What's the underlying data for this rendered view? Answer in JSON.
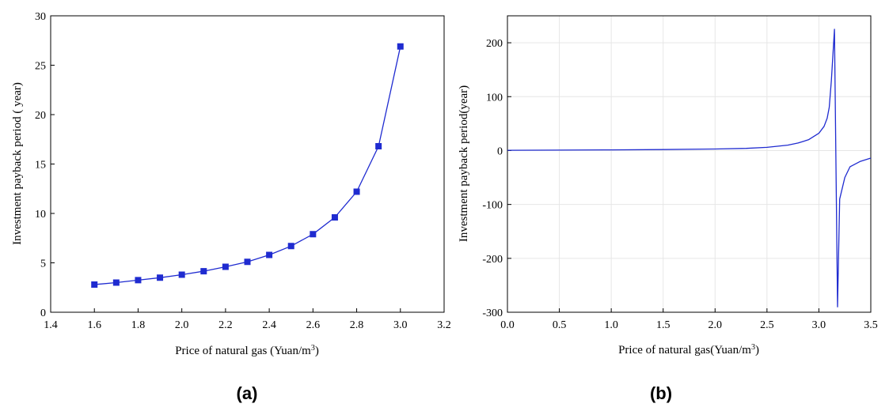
{
  "colors": {
    "series": "#1f2bd0",
    "axis": "#000000",
    "grid": "#e6e6e6"
  },
  "chart_data": [
    {
      "type": "line",
      "panel_label": "(a)",
      "xlabel": "Price of natural gas (Yuan/m",
      "xlabel_sup": "3",
      "xlabel_end": ")",
      "ylabel": "Investment payback period ( year)",
      "xlim": [
        1.4,
        3.2
      ],
      "ylim": [
        0,
        30
      ],
      "xticks": [
        "1.4",
        "1.6",
        "1.8",
        "2.0",
        "2.2",
        "2.4",
        "2.6",
        "2.8",
        "3.0",
        "3.2"
      ],
      "yticks": [
        "0",
        "5",
        "10",
        "15",
        "20",
        "25",
        "30"
      ],
      "grid": false,
      "markers": "square",
      "x": [
        1.6,
        1.7,
        1.8,
        1.9,
        2.0,
        2.1,
        2.2,
        2.3,
        2.4,
        2.5,
        2.6,
        2.7,
        2.8,
        2.9,
        3.0
      ],
      "y": [
        2.8,
        3.0,
        3.25,
        3.5,
        3.8,
        4.15,
        4.6,
        5.1,
        5.8,
        6.7,
        7.9,
        9.6,
        12.2,
        16.8,
        26.9
      ]
    },
    {
      "type": "line",
      "panel_label": "(b)",
      "xlabel": "Price of natural gas(Yuan/m",
      "xlabel_sup": "3",
      "xlabel_end": ")",
      "ylabel": "Investment payback period(year)",
      "xlim": [
        0,
        3.5
      ],
      "ylim": [
        -300,
        250
      ],
      "xticks": [
        "0.0",
        "0.5",
        "1.0",
        "1.5",
        "2.0",
        "2.5",
        "3.0",
        "3.5"
      ],
      "yticks": [
        "-300",
        "-200",
        "-100",
        "0",
        "100",
        "200"
      ],
      "grid": true,
      "markers": "none",
      "x": [
        0.0,
        0.5,
        1.0,
        1.5,
        2.0,
        2.3,
        2.5,
        2.7,
        2.8,
        2.9,
        3.0,
        3.05,
        3.08,
        3.1,
        3.12,
        3.15,
        3.18,
        3.2,
        3.25,
        3.3,
        3.4,
        3.5
      ],
      "y": [
        0.5,
        0.8,
        1.2,
        1.8,
        2.8,
        4,
        6,
        10,
        14,
        20,
        32,
        45,
        60,
        80,
        130,
        225,
        -290,
        -90,
        -50,
        -30,
        -20,
        -14
      ]
    }
  ]
}
